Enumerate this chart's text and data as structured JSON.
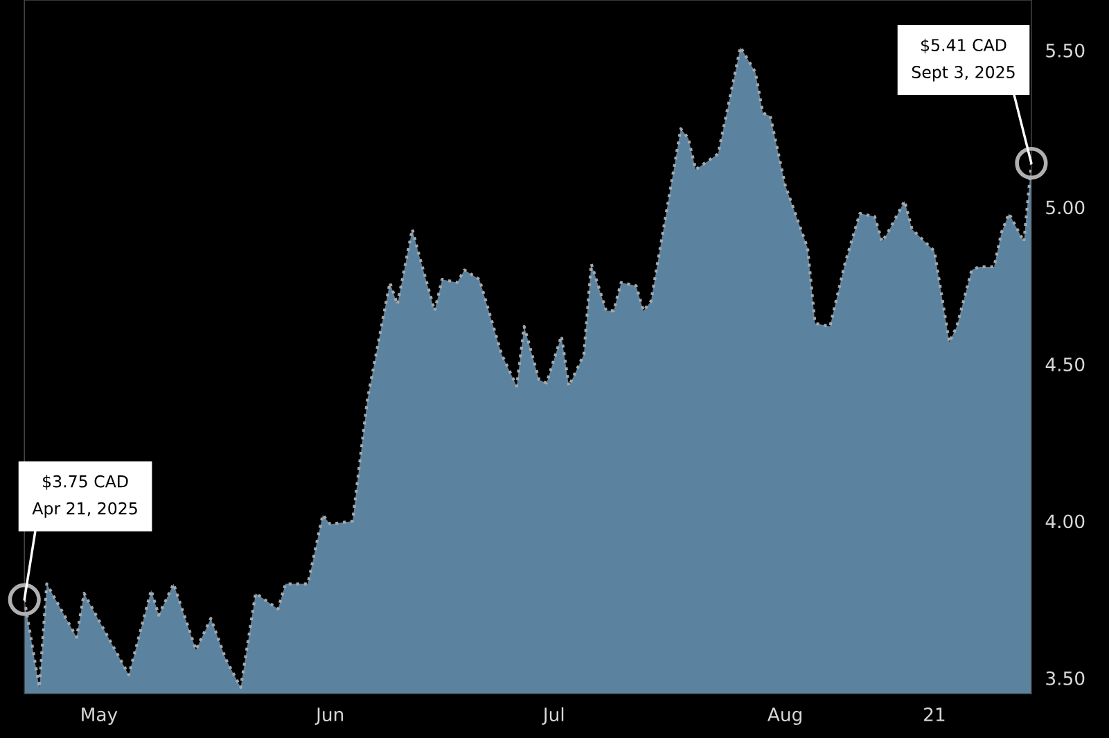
{
  "chart_data": {
    "type": "area",
    "x": [
      "2025-04-21",
      "2025-04-23",
      "2025-04-24",
      "2025-04-28",
      "2025-04-29",
      "2025-05-05",
      "2025-05-08",
      "2025-05-09",
      "2025-05-11",
      "2025-05-14",
      "2025-05-16",
      "2025-05-18",
      "2025-05-20",
      "2025-05-22",
      "2025-05-25",
      "2025-05-26",
      "2025-05-29",
      "2025-05-31",
      "2025-06-01",
      "2025-06-04",
      "2025-06-06",
      "2025-06-09",
      "2025-06-10",
      "2025-06-12",
      "2025-06-13",
      "2025-06-15",
      "2025-06-16",
      "2025-06-18",
      "2025-06-19",
      "2025-06-21",
      "2025-06-24",
      "2025-06-26",
      "2025-06-27",
      "2025-06-29",
      "2025-06-30",
      "2025-07-02",
      "2025-07-03",
      "2025-07-05",
      "2025-07-06",
      "2025-07-08",
      "2025-07-09",
      "2025-07-10",
      "2025-07-12",
      "2025-07-13",
      "2025-07-14",
      "2025-07-18",
      "2025-07-19",
      "2025-07-20",
      "2025-07-23",
      "2025-07-26",
      "2025-07-28",
      "2025-07-29",
      "2025-07-30",
      "2025-08-01",
      "2025-08-04",
      "2025-08-05",
      "2025-08-07",
      "2025-08-09",
      "2025-08-11",
      "2025-08-13",
      "2025-08-14",
      "2025-08-15",
      "2025-08-17",
      "2025-08-18",
      "2025-08-21",
      "2025-08-23",
      "2025-08-24",
      "2025-08-26",
      "2025-08-27",
      "2025-08-29",
      "2025-08-30",
      "2025-08-31",
      "2025-09-02",
      "2025-09-03"
    ],
    "series": [
      {
        "color": "#5b829f",
        "values": [
          3.75,
          3.47,
          3.8,
          3.63,
          3.77,
          3.51,
          3.78,
          3.7,
          3.8,
          3.59,
          3.69,
          3.56,
          3.47,
          3.77,
          3.72,
          3.8,
          3.8,
          4.02,
          3.99,
          4.0,
          4.39,
          4.76,
          4.69,
          4.93,
          4.84,
          4.67,
          4.77,
          4.76,
          4.8,
          4.77,
          4.53,
          4.43,
          4.62,
          4.45,
          4.44,
          4.59,
          4.43,
          4.53,
          4.82,
          4.67,
          4.67,
          4.76,
          4.75,
          4.67,
          4.7,
          5.25,
          5.22,
          5.12,
          5.17,
          5.51,
          5.43,
          5.3,
          5.29,
          5.07,
          4.87,
          4.63,
          4.62,
          4.82,
          4.98,
          4.97,
          4.89,
          4.93,
          5.02,
          4.93,
          4.86,
          4.57,
          4.62,
          4.8,
          4.81,
          4.81,
          4.92,
          4.98,
          4.89,
          5.14
        ]
      }
    ],
    "line_style": "dotted",
    "xlim": [
      "2025-04-21",
      "2025-09-03"
    ],
    "xticks": [
      {
        "value": "2025-05-01",
        "label": "May"
      },
      {
        "value": "2025-06-01",
        "label": "Jun"
      },
      {
        "value": "2025-07-01",
        "label": "Jul"
      },
      {
        "value": "2025-08-01",
        "label": "Aug"
      },
      {
        "value": "2025-08-21",
        "label": "21"
      }
    ],
    "ylim": [
      3.45,
      5.66
    ],
    "yticks": [
      {
        "value": 3.5,
        "label": "3.50"
      },
      {
        "value": 4.0,
        "label": "4.00"
      },
      {
        "value": 4.5,
        "label": "4.50"
      },
      {
        "value": 5.0,
        "label": "5.00"
      },
      {
        "value": 5.5,
        "label": "5.50"
      }
    ],
    "grid": false,
    "annotations": [
      {
        "text": "$3.75 CAD\nApr 21, 2025",
        "x": "2025-04-21",
        "y": 3.75
      },
      {
        "text": "$5.41 CAD\nSept 3, 2025",
        "x": "2025-09-03",
        "y": 5.14
      }
    ]
  }
}
